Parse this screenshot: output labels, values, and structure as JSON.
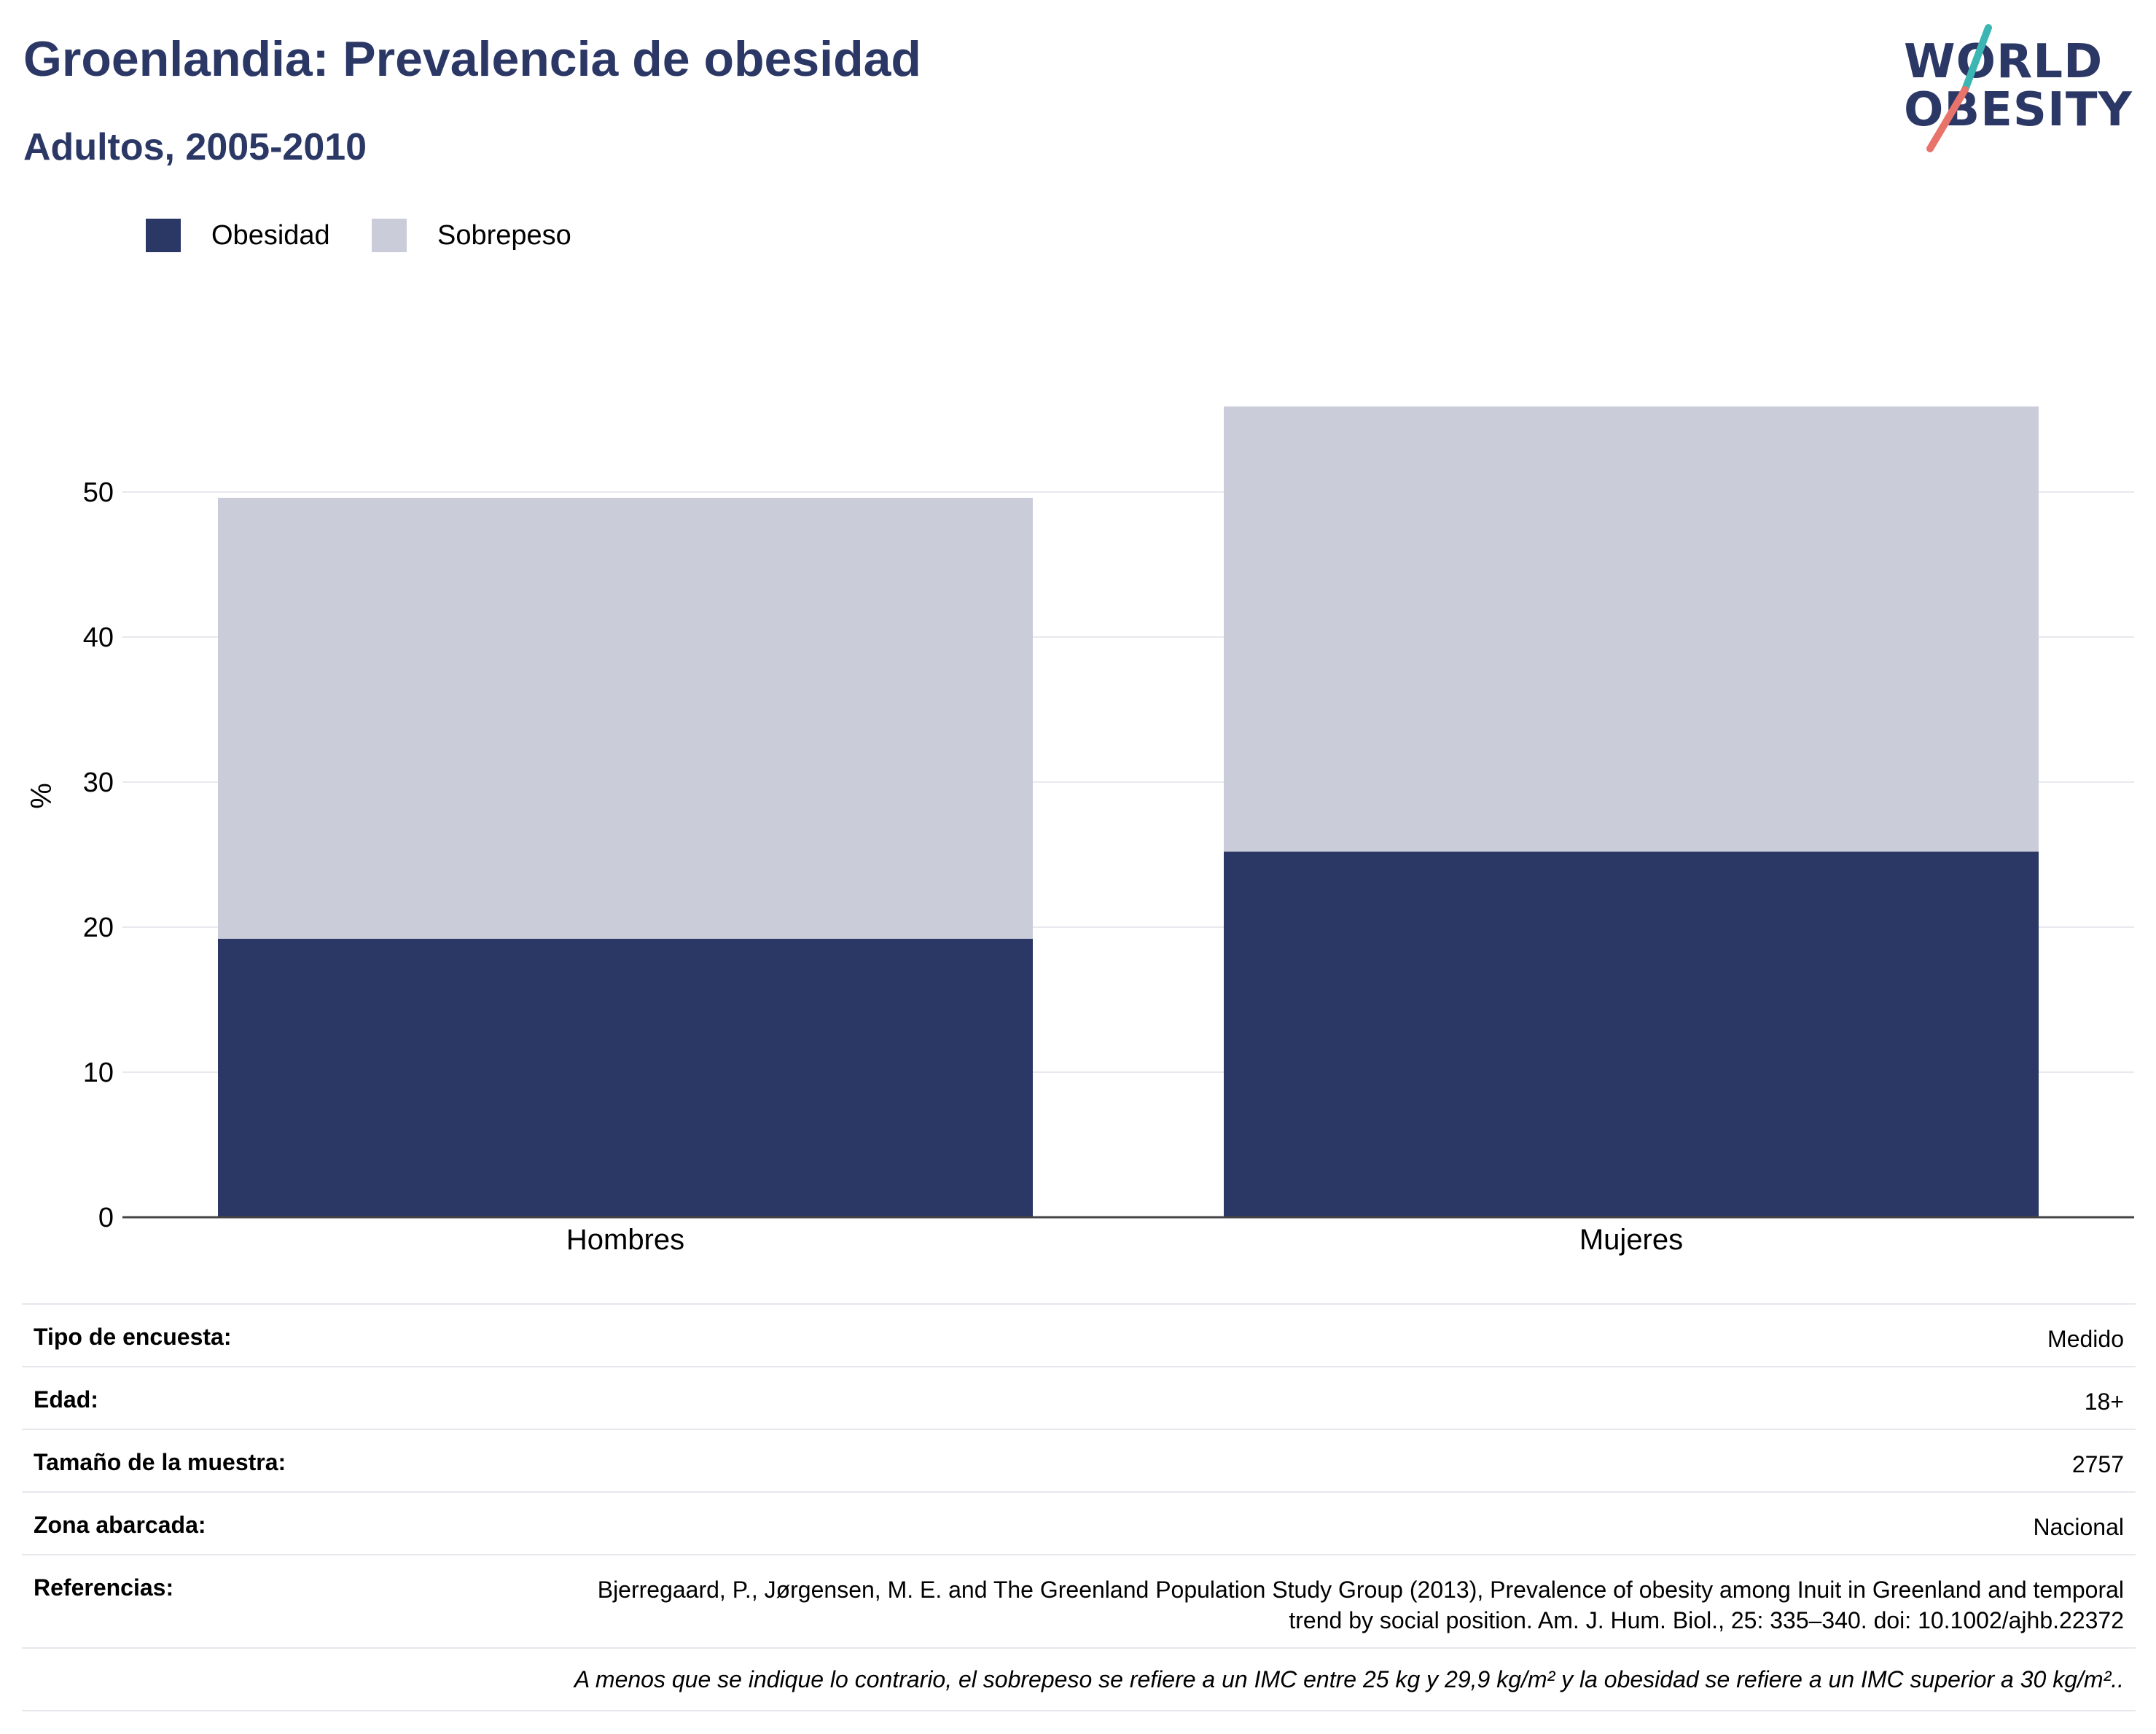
{
  "header": {
    "title": "Groenlandia: Prevalencia de obesidad",
    "subtitle": "Adultos, 2005-2010"
  },
  "logo": {
    "line1": "WORLD",
    "line2": "OBESITY",
    "accent_teal": "#3bb6b3",
    "accent_coral": "#e8736a"
  },
  "chart_data": {
    "type": "bar",
    "stacked": true,
    "categories": [
      "Hombres",
      "Mujeres"
    ],
    "series": [
      {
        "name": "Obesidad",
        "values": [
          19.2,
          25.2
        ],
        "color": "#2b3765"
      },
      {
        "name": "Sobrepeso",
        "values": [
          30.4,
          30.7
        ],
        "color": "#cacdd9"
      }
    ],
    "ylabel": "%",
    "xlabel": "",
    "ylim": [
      0,
      58
    ],
    "yticks": [
      0,
      10,
      20,
      30,
      40,
      50
    ],
    "grid": true,
    "legend_position": "top-left"
  },
  "info": [
    {
      "key": "Tipo de encuesta:",
      "value": "Medido"
    },
    {
      "key": "Edad:",
      "value": "18+"
    },
    {
      "key": "Tamaño de la muestra:",
      "value": "2757"
    },
    {
      "key": "Zona abarcada:",
      "value": "Nacional"
    },
    {
      "key": "Referencias:",
      "value": "Bjerregaard, P., Jørgensen, M. E. and The Greenland Population Study Group (2013), Prevalence of obesity among Inuit in Greenland and temporal trend by social position. Am. J. Hum. Biol., 25: 335–340. doi: 10.1002/ajhb.22372"
    }
  ],
  "footnote": "A menos que se indique lo contrario, el sobrepeso se refiere a un IMC entre 25 kg y 29,9 kg/m² y la obesidad se refiere a un IMC superior a 30 kg/m².."
}
